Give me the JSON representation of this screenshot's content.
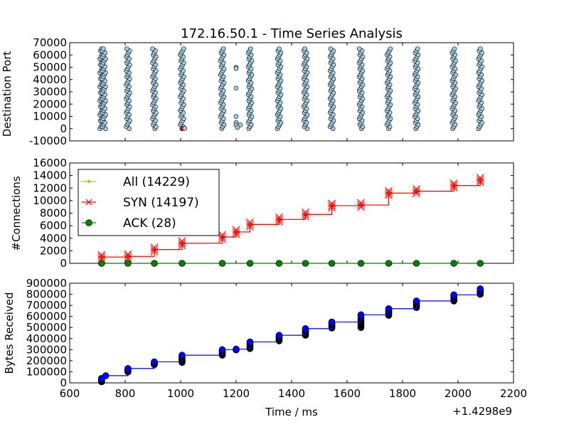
{
  "chart_data": [
    {
      "type": "scatter",
      "title": "172.16.50.1 - Time Series Analysis",
      "ylabel": "Destination Port",
      "xlabel": "",
      "xlim": [
        600,
        2200
      ],
      "ylim": [
        -10000,
        70000
      ],
      "yticks": [
        "-10000",
        "0",
        "10000",
        "20000",
        "30000",
        "40000",
        "50000",
        "60000",
        "70000"
      ],
      "colors": {
        "points": "#a6cee3",
        "edge": "#000000",
        "highlight": "#e31a1c"
      },
      "bursts_x": [
        715,
        723,
        810,
        905,
        1005,
        1150,
        1250,
        1355,
        1450,
        1545,
        1650,
        1750,
        1850,
        1985,
        2080
      ],
      "sparse_points": [
        {
          "x": 1005,
          "y": 200,
          "kind": "highlight"
        },
        {
          "x": 1015,
          "y": 200,
          "kind": "normal"
        },
        {
          "x": 1200,
          "y": 50000,
          "kind": "normal"
        },
        {
          "x": 1200,
          "y": 49000,
          "kind": "normal"
        },
        {
          "x": 1200,
          "y": 33000,
          "kind": "normal"
        },
        {
          "x": 1200,
          "y": 10000,
          "kind": "normal"
        },
        {
          "x": 1200,
          "y": 5000,
          "kind": "normal"
        },
        {
          "x": 1200,
          "y": 3000,
          "kind": "normal"
        },
        {
          "x": 1215,
          "y": 3000,
          "kind": "normal"
        },
        {
          "x": 1205,
          "y": 1000,
          "kind": "normal"
        }
      ]
    },
    {
      "type": "line",
      "ylabel": "#Connections",
      "xlabel": "",
      "xlim": [
        600,
        2200
      ],
      "ylim": [
        0,
        16000
      ],
      "yticks": [
        "0",
        "2000",
        "4000",
        "6000",
        "8000",
        "10000",
        "12000",
        "14000",
        "16000"
      ],
      "series": [
        {
          "name": "All (14229)",
          "color": "#bfbf00",
          "marker": "dot",
          "x": [
            715,
            810,
            905,
            1005,
            1150,
            1200,
            1250,
            1355,
            1450,
            1545,
            1650,
            1750,
            1850,
            1985,
            2080
          ],
          "y": [
            1000,
            1100,
            2200,
            3200,
            4200,
            5000,
            6200,
            7000,
            7800,
            9200,
            9300,
            11200,
            11500,
            12400,
            13300
          ]
        },
        {
          "name": "SYN (14197)",
          "color": "#ff0000",
          "marker": "x",
          "x": [
            715,
            810,
            905,
            1005,
            1150,
            1200,
            1250,
            1355,
            1450,
            1545,
            1650,
            1750,
            1850,
            1985,
            2080
          ],
          "y": [
            1000,
            1100,
            2200,
            3200,
            4200,
            5000,
            6200,
            7000,
            7800,
            9200,
            9300,
            11200,
            11500,
            12400,
            13300
          ]
        },
        {
          "name": "ACK (28)",
          "color": "#008000",
          "marker": "circle",
          "x": [
            715,
            810,
            905,
            1005,
            1150,
            1250,
            1355,
            1450,
            1545,
            1650,
            1750,
            1850,
            1985,
            2080
          ],
          "y": [
            0,
            0,
            0,
            0,
            0,
            0,
            0,
            0,
            0,
            0,
            0,
            0,
            0,
            0
          ]
        }
      ],
      "legend": "top-left"
    },
    {
      "type": "line",
      "ylabel": "Bytes Received",
      "xlabel": "Time / ms",
      "x_offset_label": "+1.4298e9",
      "xlim": [
        600,
        2200
      ],
      "ylim": [
        0,
        900000
      ],
      "xticks": [
        "600",
        "800",
        "1000",
        "1200",
        "1400",
        "1600",
        "1800",
        "2000",
        "2200"
      ],
      "yticks": [
        "0",
        "100000",
        "200000",
        "300000",
        "400000",
        "500000",
        "600000",
        "700000",
        "800000",
        "900000"
      ],
      "series": [
        {
          "name": "",
          "color": "#0000ff",
          "marker": "circle",
          "x": [
            715,
            730,
            810,
            905,
            1005,
            1150,
            1200,
            1250,
            1355,
            1450,
            1545,
            1650,
            1750,
            1850,
            1985,
            2080
          ],
          "y": [
            40000,
            65000,
            130000,
            190000,
            250000,
            300000,
            305000,
            370000,
            430000,
            490000,
            550000,
            615000,
            670000,
            740000,
            795000,
            850000
          ]
        }
      ],
      "black_bursts": [
        {
          "x": 715,
          "y_low": 10000,
          "y_high": 40000
        },
        {
          "x": 810,
          "y_low": 100000,
          "y_high": 125000
        },
        {
          "x": 905,
          "y_low": 165000,
          "y_high": 185000
        },
        {
          "x": 1005,
          "y_low": 185000,
          "y_high": 245000
        },
        {
          "x": 1150,
          "y_low": 250000,
          "y_high": 295000
        },
        {
          "x": 1200,
          "y_low": 300000,
          "y_high": 300000
        },
        {
          "x": 1250,
          "y_low": 310000,
          "y_high": 365000
        },
        {
          "x": 1355,
          "y_low": 380000,
          "y_high": 425000
        },
        {
          "x": 1450,
          "y_low": 430000,
          "y_high": 485000
        },
        {
          "x": 1545,
          "y_low": 495000,
          "y_high": 545000
        },
        {
          "x": 1650,
          "y_low": 500000,
          "y_high": 610000
        },
        {
          "x": 1750,
          "y_low": 610000,
          "y_high": 665000
        },
        {
          "x": 1850,
          "y_low": 680000,
          "y_high": 735000
        },
        {
          "x": 1985,
          "y_low": 740000,
          "y_high": 790000
        },
        {
          "x": 2080,
          "y_low": 800000,
          "y_high": 845000
        }
      ]
    }
  ]
}
